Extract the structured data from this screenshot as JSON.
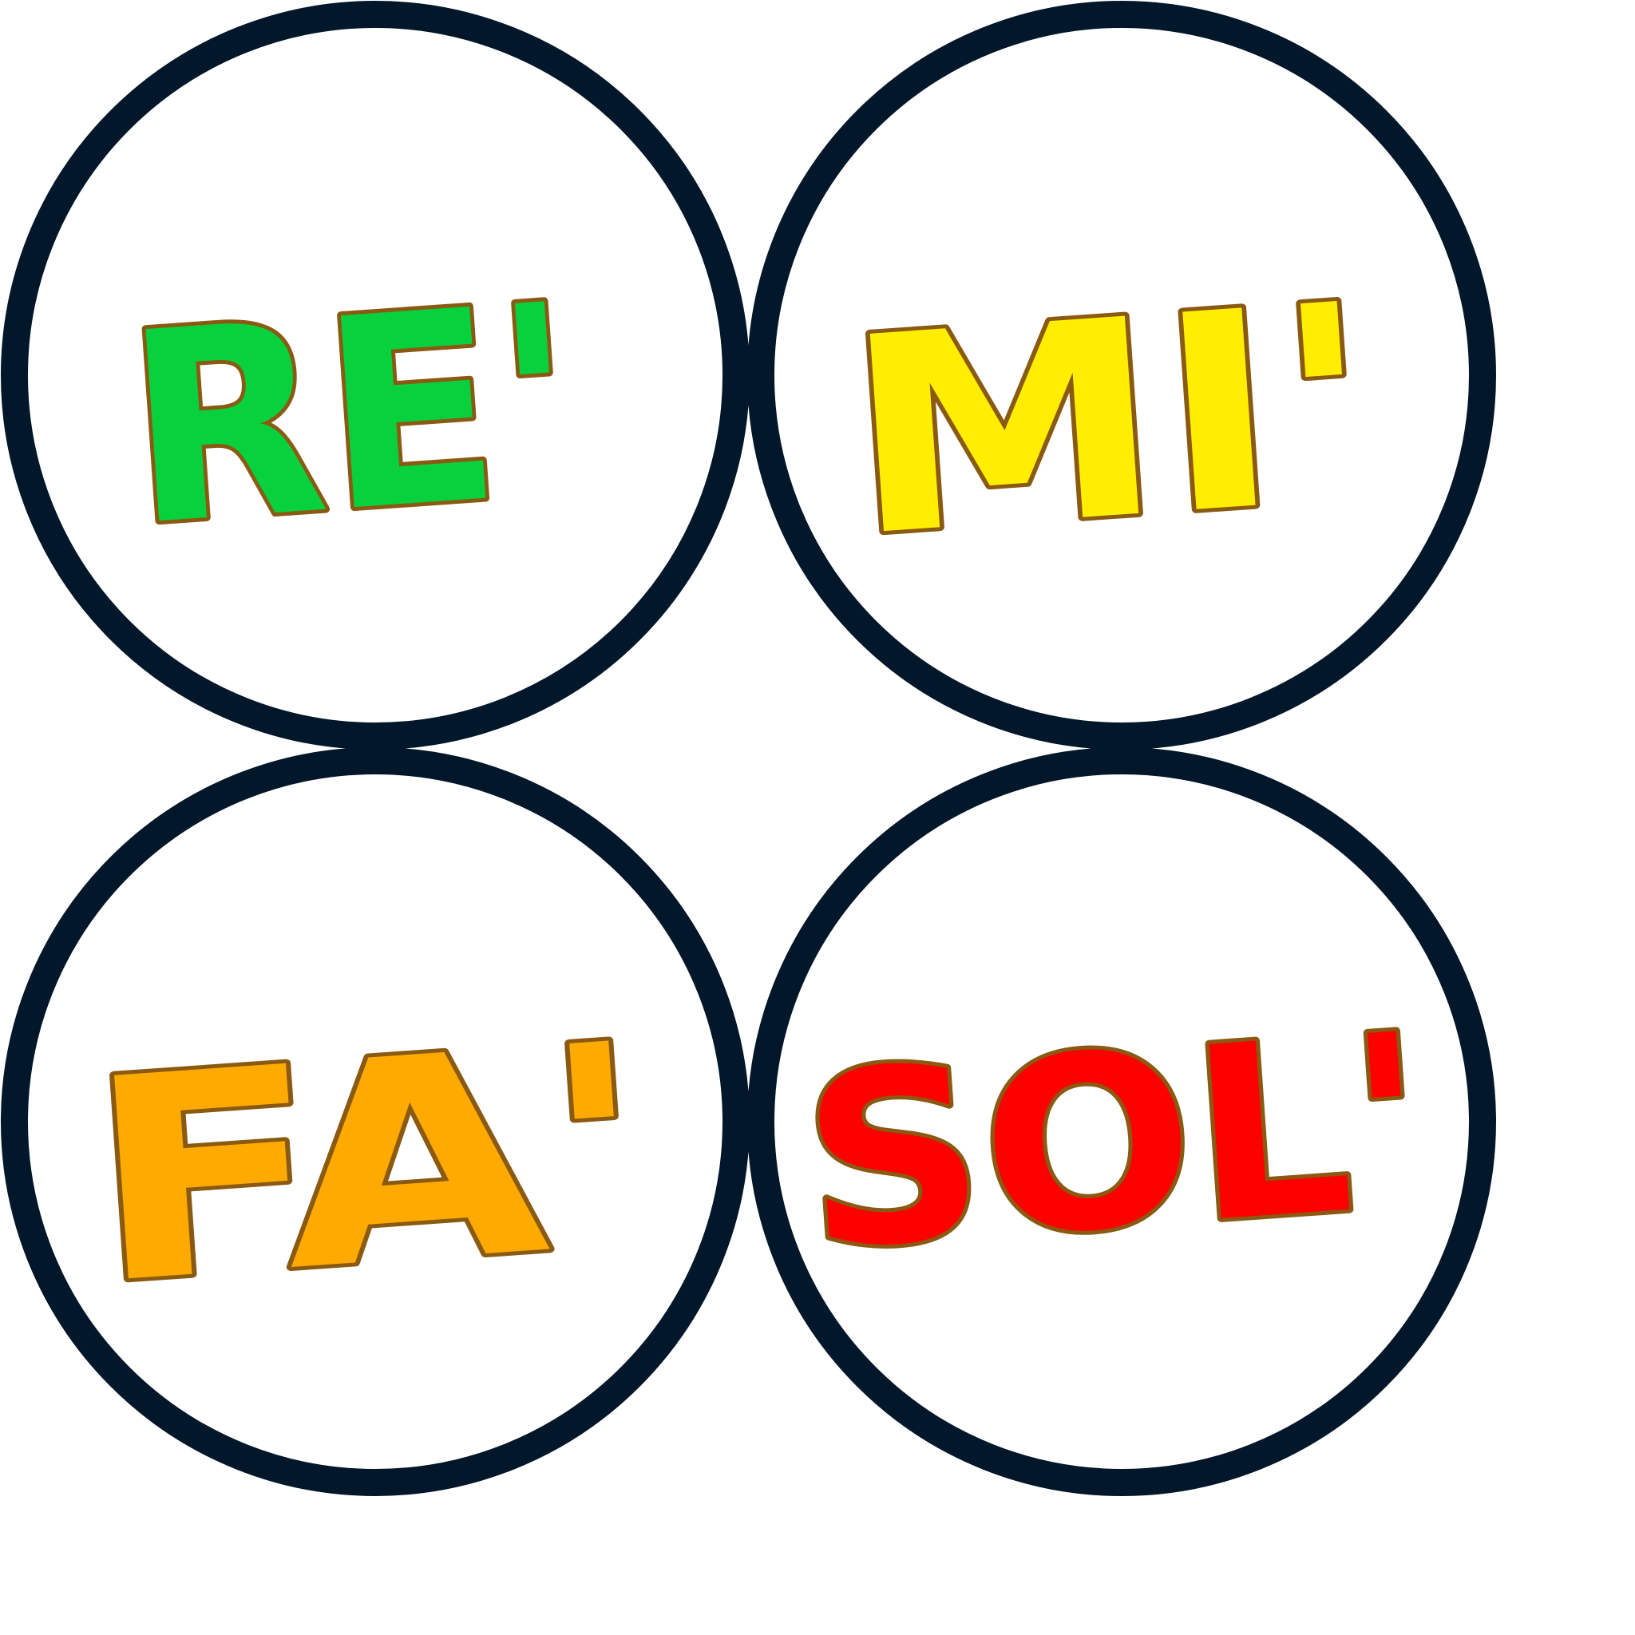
{
  "badges": [
    {
      "label": "RE'",
      "fill": "#08D13E",
      "highlight": "#6FEA8E",
      "outline": "#8A5A12",
      "ring": "#02172A"
    },
    {
      "label": "MI'",
      "fill": "#FFEE00",
      "highlight": "#FFF680",
      "outline": "#8A5A12",
      "ring": "#02172A"
    },
    {
      "label": "FA'",
      "fill": "#FFAA00",
      "highlight": "#FFD070",
      "outline": "#8A5A12",
      "ring": "#02172A"
    },
    {
      "label": "SOL'",
      "fill": "#FF0000",
      "highlight": "#FF7070",
      "outline": "#8A5A12",
      "ring": "#02172A"
    }
  ]
}
